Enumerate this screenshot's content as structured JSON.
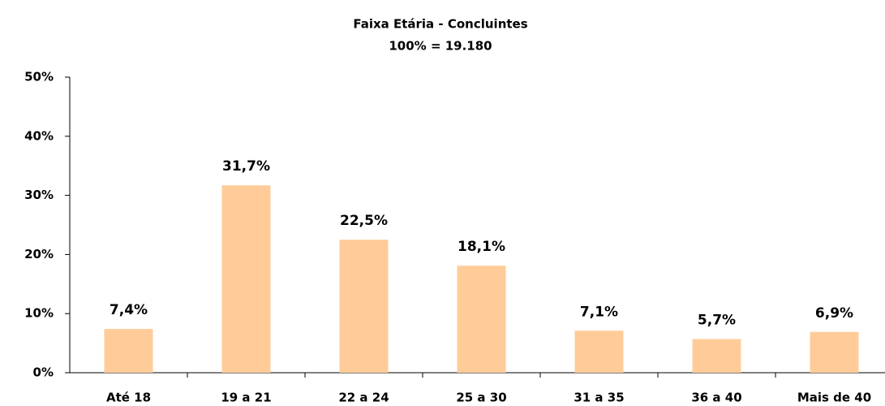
{
  "chart_data": {
    "type": "bar",
    "title": "Faixa Etária - Concluintes",
    "subtitle": "100% = 19.180",
    "categories": [
      "Até 18",
      "19 a 21",
      "22 a 24",
      "25 a 30",
      "31 a 35",
      "36 a 40",
      "Mais de 40"
    ],
    "values": [
      7.4,
      31.7,
      22.5,
      18.1,
      7.1,
      5.7,
      6.9
    ],
    "value_labels": [
      "7,4%",
      "31,7%",
      "22,5%",
      "18,1%",
      "7,1%",
      "5,7%",
      "6,9%"
    ],
    "color": "#ffcc99",
    "ylim": [
      0,
      50
    ],
    "yticks": [
      {
        "value": 0,
        "label": "0%"
      },
      {
        "value": 10,
        "label": "10%"
      },
      {
        "value": 20,
        "label": "20%"
      },
      {
        "value": 30,
        "label": "30%"
      },
      {
        "value": 40,
        "label": "40%"
      },
      {
        "value": 50,
        "label": "50%"
      }
    ],
    "grid": false
  }
}
